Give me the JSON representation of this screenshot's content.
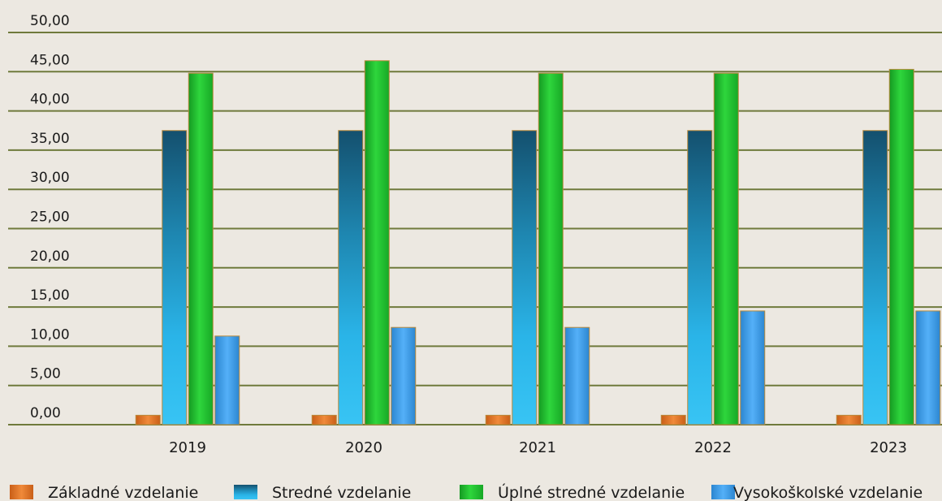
{
  "chart_data": {
    "type": "bar",
    "title": "",
    "xlabel": "",
    "ylabel": "",
    "ylim": [
      0,
      50
    ],
    "y_ticks": [
      "0,00",
      "5,00",
      "10,00",
      "15,00",
      "20,00",
      "25,00",
      "30,00",
      "35,00",
      "40,00",
      "45,00",
      "50,00"
    ],
    "grid": true,
    "legend_position": "bottom",
    "categories": [
      "2019",
      "2020",
      "2021",
      "2022",
      "2023"
    ],
    "series": [
      {
        "name": "Základné vzdelanie",
        "color": "#e8772a",
        "values": [
          1.2,
          1.2,
          1.2,
          1.2,
          1.2
        ]
      },
      {
        "name": "Stredné vzdelanie",
        "color": "#2ab4e8",
        "values": [
          37.5,
          37.5,
          37.5,
          37.5,
          37.5
        ]
      },
      {
        "name": "Úplné stredné vzdelanie",
        "color": "#22c832",
        "values": [
          44.8,
          46.4,
          44.8,
          44.8,
          45.3
        ]
      },
      {
        "name": "Vysokoškolské vzdelanie",
        "color": "#3ea2f2",
        "values": [
          11.3,
          12.4,
          12.4,
          14.5,
          14.5
        ]
      }
    ]
  }
}
